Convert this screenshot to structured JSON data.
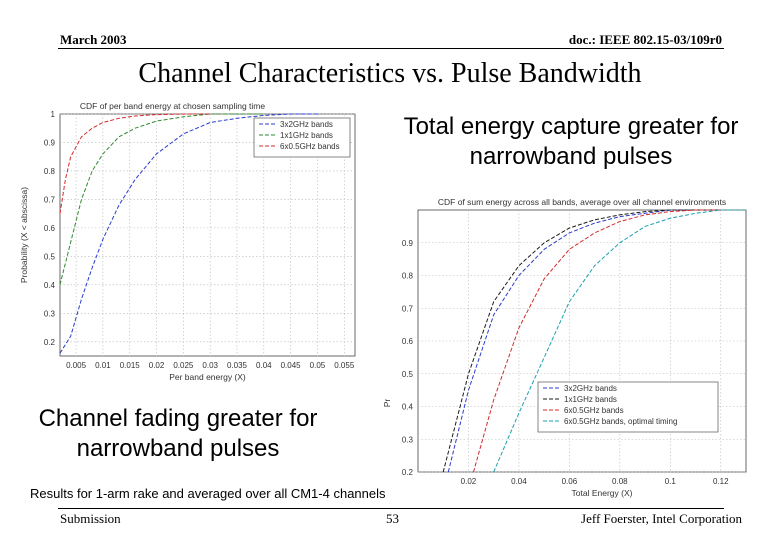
{
  "header": {
    "left": "March 2003",
    "right": "doc.: IEEE 802.15-03/109r0"
  },
  "slide_title": "Channel Characteristics vs. Pulse Bandwidth",
  "callouts": {
    "top": "Total energy capture greater for narrowband pulses",
    "bottom": "Channel fading greater for narrowband pulses"
  },
  "note": "Results for 1-arm rake and averaged over all CM1-4 channels",
  "footer": {
    "left": "Submission",
    "center": "53",
    "right": "Jeff Foerster, Intel Corporation"
  },
  "colors": {
    "blue": "#2b3ccc",
    "green": "#2e8a2e",
    "red": "#d42a2a",
    "cyan": "#1aa0b0",
    "grid": "#b8b8b8"
  },
  "chart_data": [
    {
      "type": "line",
      "title": "CDF of per band energy at chosen sampling time",
      "xlabel": "Per band energy (X)",
      "ylabel": "Probability (X < abscissa)",
      "xlim": [
        0.002,
        0.057
      ],
      "ylim": [
        0.15,
        1.0
      ],
      "xticks": [
        0.005,
        0.01,
        0.015,
        0.02,
        0.025,
        0.03,
        0.035,
        0.04,
        0.045,
        0.05,
        0.055
      ],
      "xtick_labels": [
        "0.005",
        "0.01",
        "0.015",
        "0.02",
        "0.025",
        "0.03",
        "0.035",
        "0.04",
        "0.045",
        "0.05",
        "0.055"
      ],
      "yticks": [
        0.2,
        0.3,
        0.4,
        0.5,
        0.6,
        0.7,
        0.8,
        0.9,
        1.0
      ],
      "ytick_labels": [
        "0.2",
        "0.3",
        "0.4",
        "0.5",
        "0.6",
        "0.7",
        "0.8",
        "0.9",
        "1"
      ],
      "grid": true,
      "legend_position": "top-right",
      "series": [
        {
          "name": "3x2GHz bands",
          "color": "#2b3ccc",
          "x": [
            0.002,
            0.004,
            0.006,
            0.008,
            0.01,
            0.013,
            0.016,
            0.02,
            0.025,
            0.03,
            0.035,
            0.04,
            0.045,
            0.05
          ],
          "y": [
            0.16,
            0.22,
            0.35,
            0.46,
            0.56,
            0.68,
            0.77,
            0.86,
            0.93,
            0.97,
            0.985,
            0.995,
            1.0,
            1.0
          ]
        },
        {
          "name": "1x1GHz bands",
          "color": "#2e8a2e",
          "x": [
            0.002,
            0.004,
            0.006,
            0.008,
            0.01,
            0.013,
            0.016,
            0.02,
            0.025,
            0.03,
            0.035,
            0.04
          ],
          "y": [
            0.4,
            0.55,
            0.7,
            0.8,
            0.86,
            0.92,
            0.95,
            0.975,
            0.99,
            1.0,
            1.0,
            1.0
          ]
        },
        {
          "name": "6x0.5GHz bands",
          "color": "#d42a2a",
          "x": [
            0.002,
            0.003,
            0.004,
            0.006,
            0.008,
            0.01,
            0.013,
            0.016,
            0.02,
            0.025,
            0.03
          ],
          "y": [
            0.65,
            0.77,
            0.85,
            0.92,
            0.95,
            0.97,
            0.985,
            0.993,
            0.998,
            1.0,
            1.0
          ]
        }
      ]
    },
    {
      "type": "line",
      "title": "CDF of sum energy across all bands, average over all channel environments",
      "xlabel": "Total Energy (X)",
      "ylabel": "Pr",
      "xlim": [
        0.0,
        0.13
      ],
      "ylim": [
        0.2,
        1.0
      ],
      "xticks": [
        0.02,
        0.04,
        0.06,
        0.08,
        0.1,
        0.12
      ],
      "xtick_labels": [
        "0.02",
        "0.04",
        "0.06",
        "0.08",
        "0.1",
        "0.12"
      ],
      "yticks": [
        0.2,
        0.3,
        0.4,
        0.5,
        0.6,
        0.7,
        0.8,
        0.9
      ],
      "ytick_labels": [
        "0.2",
        "0.3",
        "0.4",
        "0.5",
        "0.6",
        "0.7",
        "0.8",
        "0.9"
      ],
      "grid": true,
      "legend_position": "bottom-right",
      "series": [
        {
          "name": "3x2GHz bands",
          "color": "#2b3ccc",
          "x": [
            0.012,
            0.02,
            0.03,
            0.04,
            0.05,
            0.06,
            0.07,
            0.08,
            0.09,
            0.1,
            0.11,
            0.12
          ],
          "y": [
            0.2,
            0.45,
            0.68,
            0.8,
            0.88,
            0.93,
            0.96,
            0.98,
            0.99,
            1.0,
            1.0,
            1.0
          ]
        },
        {
          "name": "1x1GHz bands",
          "color": "#1a1a1a",
          "x": [
            0.01,
            0.02,
            0.03,
            0.04,
            0.05,
            0.06,
            0.07,
            0.08,
            0.09,
            0.1,
            0.11,
            0.12
          ],
          "y": [
            0.2,
            0.5,
            0.72,
            0.83,
            0.9,
            0.945,
            0.97,
            0.985,
            0.995,
            1.0,
            1.0,
            1.0
          ]
        },
        {
          "name": "6x0.5GHz bands",
          "color": "#d42a2a",
          "x": [
            0.022,
            0.03,
            0.04,
            0.05,
            0.06,
            0.07,
            0.08,
            0.09,
            0.1,
            0.11,
            0.12
          ],
          "y": [
            0.2,
            0.42,
            0.64,
            0.79,
            0.88,
            0.93,
            0.965,
            0.985,
            0.995,
            1.0,
            1.0
          ]
        },
        {
          "name": "6x0.5GHz bands, optimal timing",
          "color": "#1aa0b0",
          "x": [
            0.03,
            0.04,
            0.05,
            0.06,
            0.07,
            0.08,
            0.09,
            0.1,
            0.11,
            0.12,
            0.13
          ],
          "y": [
            0.2,
            0.38,
            0.55,
            0.72,
            0.83,
            0.9,
            0.95,
            0.975,
            0.99,
            1.0,
            1.0
          ]
        }
      ]
    }
  ]
}
